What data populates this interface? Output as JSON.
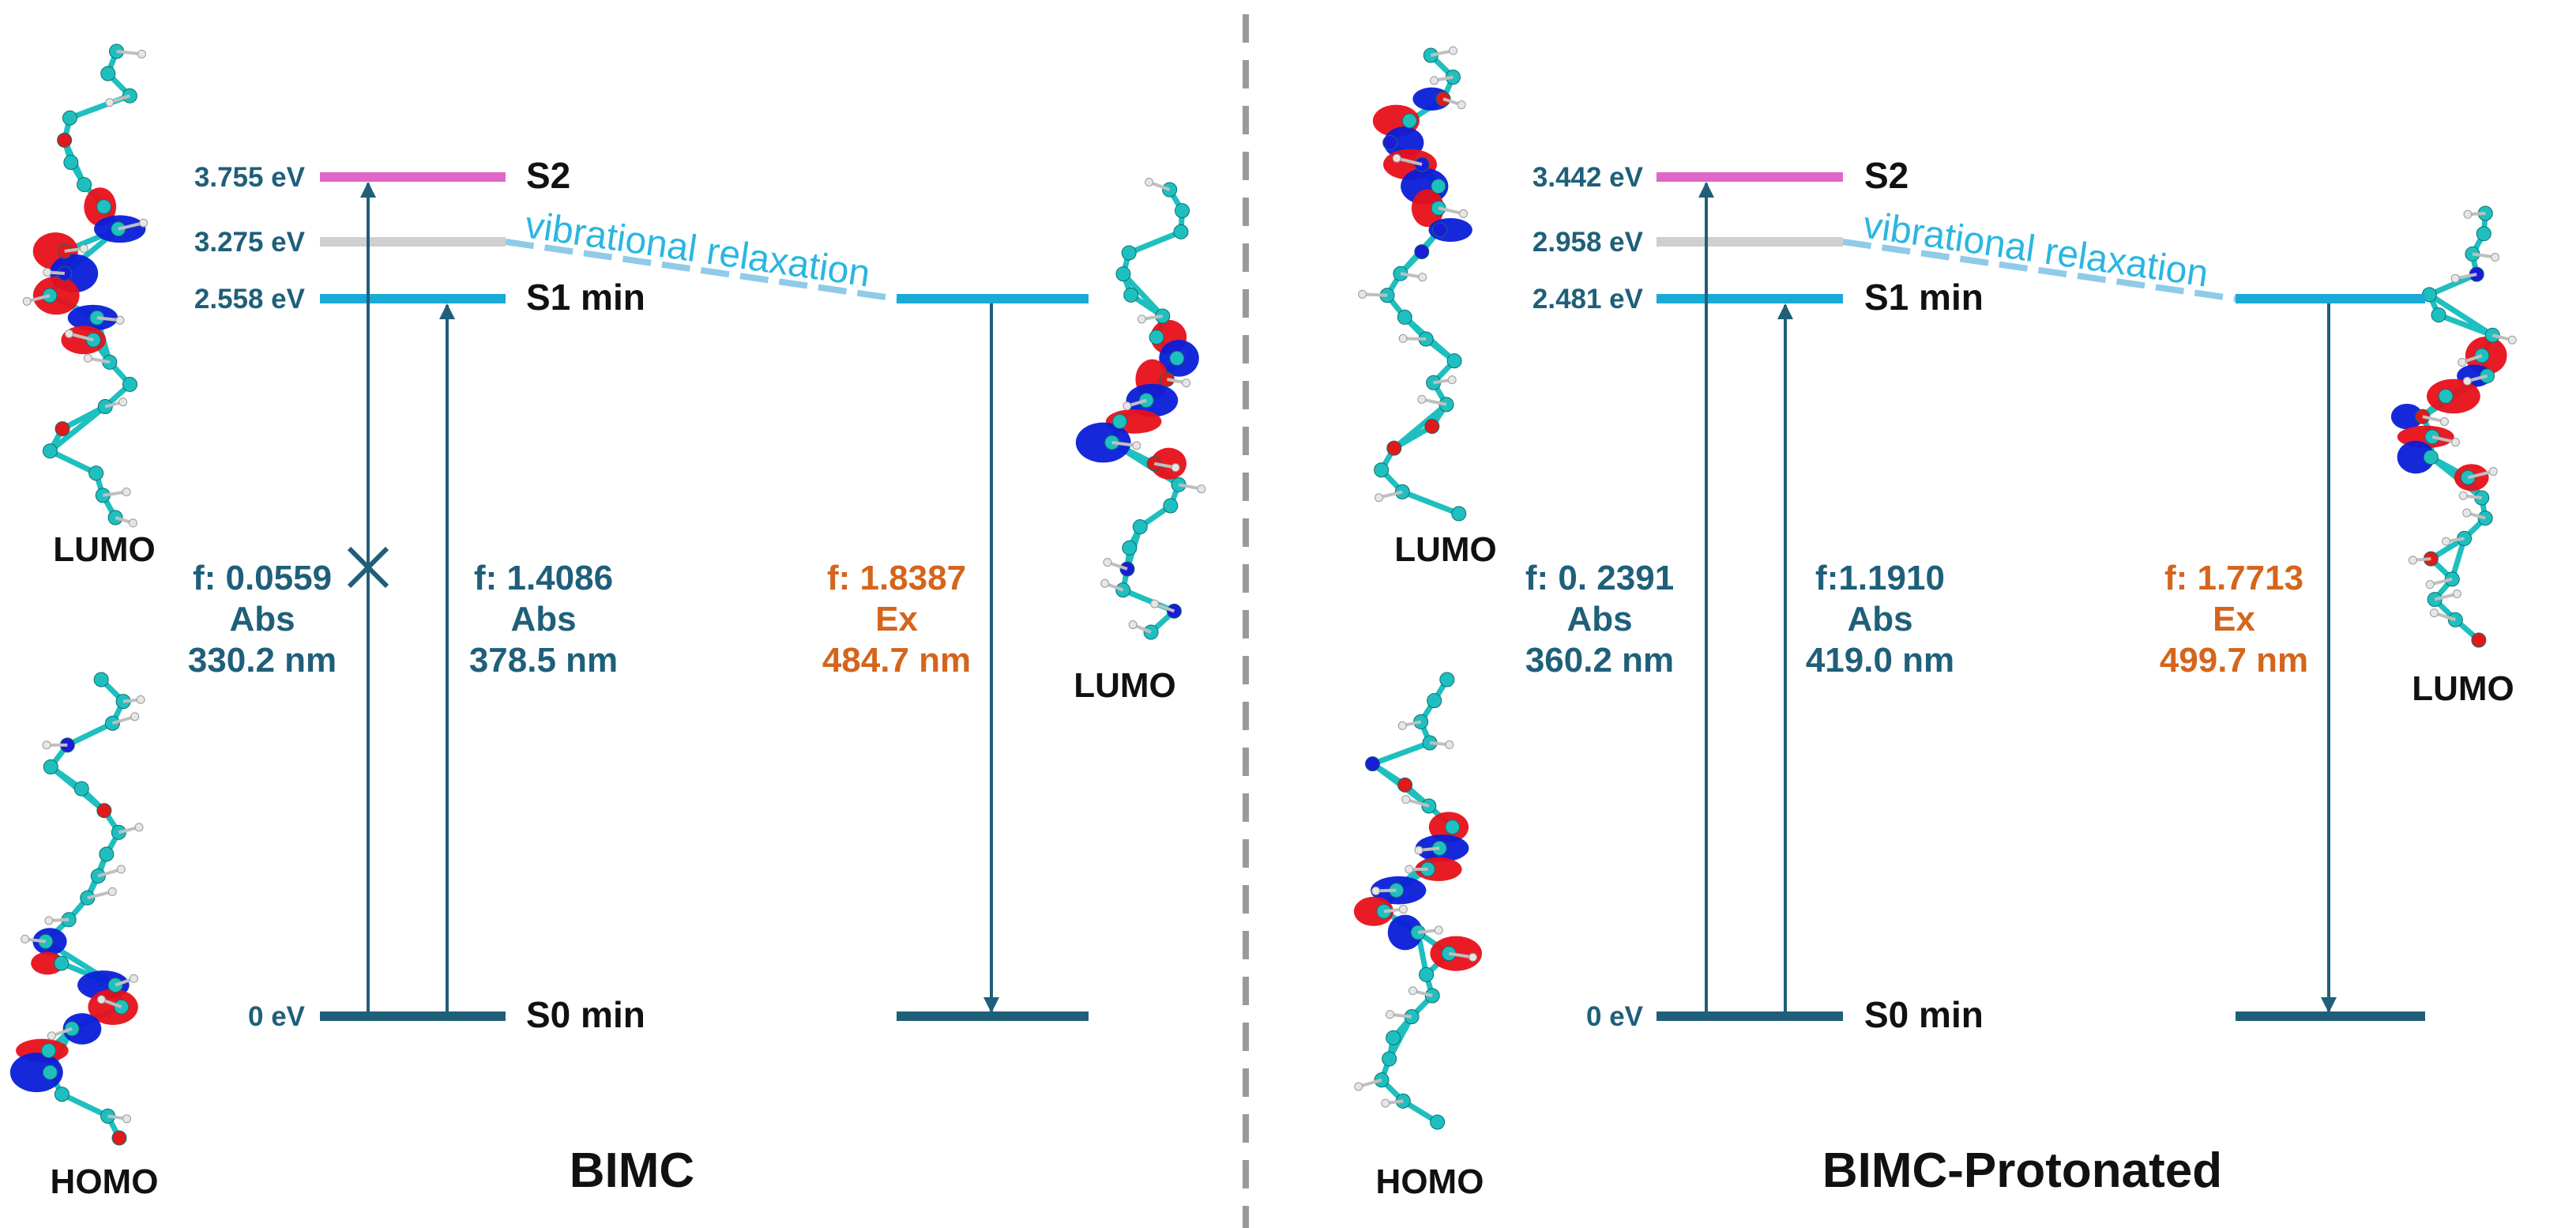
{
  "panels": [
    {
      "title": "BIMC",
      "levels": {
        "s2": {
          "label": "S2",
          "energy": "3.755 eV"
        },
        "mid": {
          "energy": "3.275 eV"
        },
        "s1": {
          "label": "S1 min",
          "energy": "2.558 eV"
        },
        "s0": {
          "label": "S0 min",
          "energy": "0 eV"
        }
      },
      "relaxation_label": "vibrational relaxation",
      "transitions": [
        {
          "f": "f: 0.0559",
          "kind": "Abs",
          "wavelength": "330.2 nm",
          "forbidden": true
        },
        {
          "f": "f: 1.4086",
          "kind": "Abs",
          "wavelength": "378.5 nm"
        },
        {
          "f": "f: 1.8387",
          "kind": "Ex",
          "wavelength": "484.7 nm"
        }
      ],
      "orbitals": {
        "left_top": "LUMO",
        "left_bottom": "HOMO",
        "right": "LUMO"
      }
    },
    {
      "title": "BIMC-Protonated",
      "levels": {
        "s2": {
          "label": "S2",
          "energy": "3.442 eV"
        },
        "mid": {
          "energy": "2.958 eV"
        },
        "s1": {
          "label": "S1 min",
          "energy": "2.481 eV"
        },
        "s0": {
          "label": "S0 min",
          "energy": "0 eV"
        }
      },
      "relaxation_label": "vibrational relaxation",
      "transitions": [
        {
          "f": "f: 0. 2391",
          "kind": "Abs",
          "wavelength": "360.2 nm"
        },
        {
          "f": "f:1.1910",
          "kind": "Abs",
          "wavelength": "419.0 nm"
        },
        {
          "f": "f: 1.7713",
          "kind": "Ex",
          "wavelength": "499.7 nm"
        }
      ],
      "orbitals": {
        "left_top": "LUMO",
        "left_bottom": "HOMO",
        "right": "LUMO"
      }
    }
  ],
  "colors": {
    "s2": "#e066c8",
    "mid": "#cfcfcf",
    "s1": "#1aaad8",
    "s0": "#1f5f7a",
    "arrow": "#1f5f7a",
    "relax": "#8fcbe8",
    "relax_text": "#2bb6e0",
    "emission_text": "#d4651c",
    "orbital_pos": "#e8101a",
    "orbital_neg": "#0a1ed8",
    "atom_c": "#1fbfbf",
    "atom_n": "#1b1bd8",
    "atom_o": "#e01a1a",
    "atom_h": "#e6e6e6",
    "divider": "#9a9a9a"
  }
}
